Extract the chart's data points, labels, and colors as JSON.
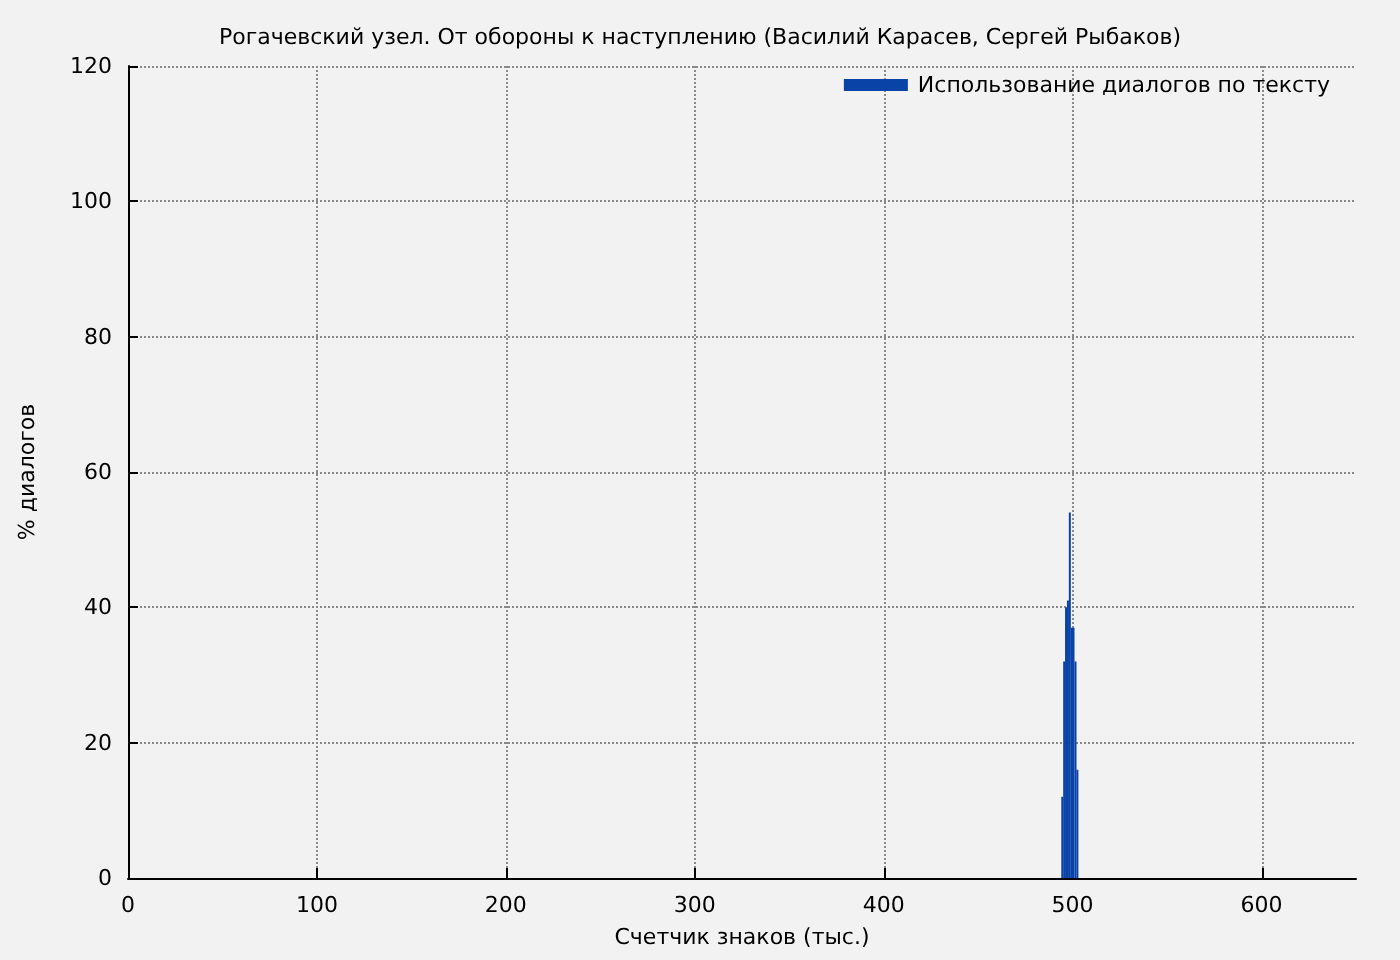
{
  "chart_data": {
    "type": "histogram",
    "title": "Рогачевский узел. От обороны к наступлению (Василий Карасев, Сергей Рыбаков)",
    "xlabel": "Счетчик знаков (тыс.)",
    "ylabel": "% диалогов",
    "bins": [
      494,
      495,
      496,
      497,
      498,
      499,
      501,
      502,
      503
    ],
    "series": [
      {
        "name": "Использование диалогов по тексту",
        "color": "#0a43a8",
        "values": [
          12,
          32,
          40,
          41,
          54,
          37,
          32,
          16
        ]
      }
    ],
    "xlim": [
      0,
      650
    ],
    "xticks": [
      0,
      100,
      200,
      300,
      400,
      500,
      600
    ],
    "ylim": [
      0,
      120
    ],
    "yticks": [
      0,
      20,
      40,
      60,
      80,
      100,
      120
    ],
    "grid": true,
    "line_style": "dotted",
    "legend": "top right"
  }
}
